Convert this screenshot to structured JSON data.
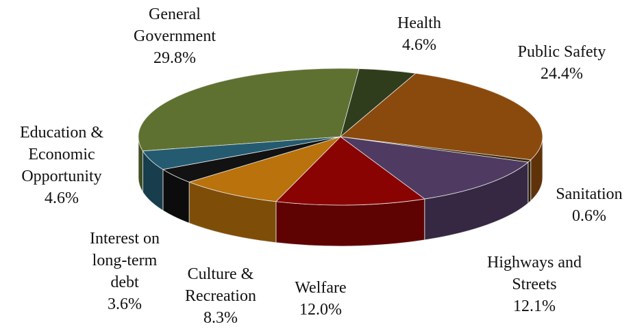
{
  "chart_data": {
    "type": "pie3d",
    "categories": [
      "General Government",
      "Health",
      "Public Safety",
      "Sanitation",
      "Highways and Streets",
      "Welfare",
      "Culture & Recreation",
      "Interest on long-term debt",
      "Education & Economic Opportunity"
    ],
    "values": [
      29.8,
      4.6,
      24.4,
      0.6,
      12.1,
      12.0,
      8.3,
      3.6,
      4.6
    ],
    "value_labels": [
      "29.8%",
      "4.6%",
      "24.4%",
      "0.6%",
      "12.1%",
      "12.0%",
      "8.3%",
      "3.6%",
      "4.6%"
    ],
    "colors": [
      "#5f7131",
      "#2f3d1d",
      "#8b4a0d",
      "#3b2a10",
      "#4f3b62",
      "#8a0303",
      "#b9720c",
      "#121212",
      "#245b71"
    ]
  }
}
